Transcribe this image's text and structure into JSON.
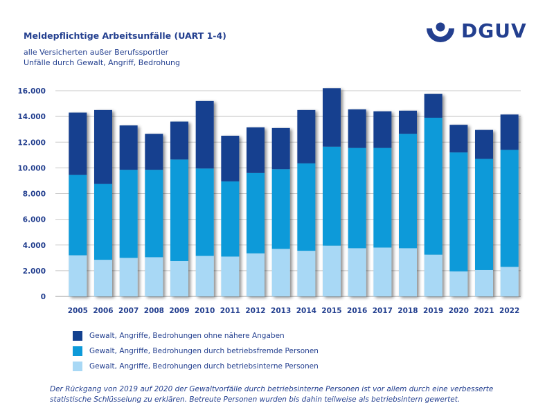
{
  "header": {
    "title": "Meldepflichtige Arbeitsunfälle (UART 1-4)",
    "subtitle_line1": "alle Versicherten außer Berufssportler",
    "subtitle_line2": "Unfälle durch Gewalt, Angriff, Bedrohung"
  },
  "logo": {
    "text": "DGUV",
    "color": "#233f8f"
  },
  "footnote": "Der Rückgang von 2019 auf 2020 der Gewaltvorfälle durch betriebsinterne Personen ist  vor allem durch eine verbesserte statistische Schlüsselung zu erklären. Betreute Personen wurden bis dahin teilweise als betriebsintern gewertet.",
  "chart_data": {
    "type": "bar",
    "stacked": true,
    "categories": [
      "2005",
      "2006",
      "2007",
      "2008",
      "2009",
      "2010",
      "2011",
      "2012",
      "2013",
      "2014",
      "2015",
      "2016",
      "2017",
      "2018",
      "2019",
      "2020",
      "2021",
      "2022"
    ],
    "ylim": [
      0,
      16000
    ],
    "yticks": [
      0,
      2000,
      4000,
      6000,
      8000,
      10000,
      12000,
      14000,
      16000
    ],
    "ytick_labels": [
      "0",
      "2.000",
      "4.000",
      "6.000",
      "8.000",
      "10.000",
      "12.000",
      "14.000",
      "16.000"
    ],
    "grid": true,
    "legend_position": "bottom",
    "series": [
      {
        "name": "Gewalt, Angriffe, Bedrohungen durch betriebsinterne Personen",
        "color": "#a8d8f5",
        "values": [
          3200,
          2850,
          3000,
          3050,
          2750,
          3150,
          3100,
          3350,
          3700,
          3550,
          3950,
          3750,
          3800,
          3750,
          3250,
          1950,
          2050,
          2300
        ]
      },
      {
        "name": "Gewalt, Angriffe, Bedrohungen durch betriebsfremde Personen",
        "color": "#0d9ad9",
        "values": [
          6250,
          5900,
          6850,
          6800,
          7900,
          6800,
          5850,
          6250,
          6200,
          6800,
          7700,
          7800,
          7750,
          8900,
          10650,
          9250,
          8650,
          9100
        ]
      },
      {
        "name": "Gewalt, Angriffe, Bedrohungen ohne nähere Angaben",
        "color": "#13418f",
        "values": [
          4850,
          5750,
          3450,
          2800,
          2950,
          5250,
          3550,
          3550,
          3200,
          4150,
          4550,
          3000,
          2850,
          1800,
          1850,
          2150,
          2250,
          2750
        ]
      }
    ]
  }
}
